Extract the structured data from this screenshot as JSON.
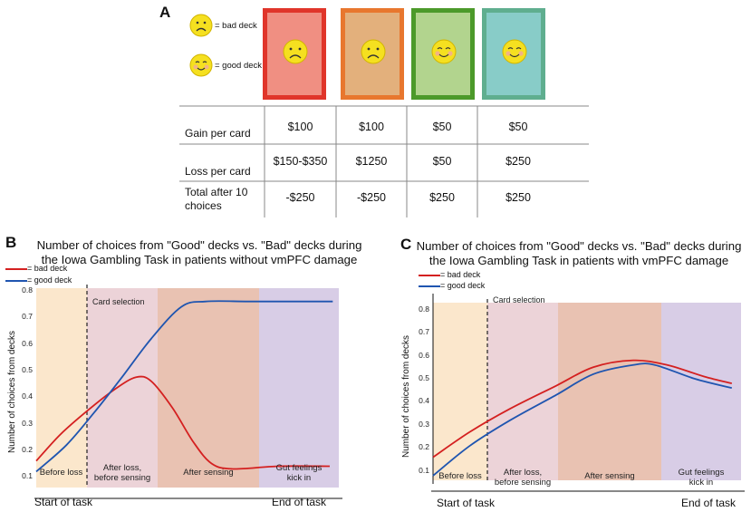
{
  "panel_a": {
    "letter": "A",
    "legend_bad": "= bad deck",
    "legend_good": "= good deck",
    "cards": [
      {
        "name": "deck-1",
        "border": "#e0352a",
        "fill": "#f08f82",
        "face": "sad"
      },
      {
        "name": "deck-2",
        "border": "#e8772e",
        "fill": "#e3b07c",
        "face": "sad"
      },
      {
        "name": "deck-3",
        "border": "#4c9a2a",
        "fill": "#b2d48e",
        "face": "happy"
      },
      {
        "name": "deck-4",
        "border": "#5fae8f",
        "fill": "#88ccc8",
        "face": "happy"
      }
    ],
    "rows": [
      {
        "label": "Gain per card",
        "values": [
          "$100",
          "$100",
          "$50",
          "$50"
        ]
      },
      {
        "label": "Loss per card",
        "values": [
          "$150-$350",
          "$1250",
          "$50",
          "$250"
        ]
      },
      {
        "label_line1": "Total after 10",
        "label_line2": "choices",
        "values": [
          "-$250",
          "-$250",
          "$250",
          "$250"
        ]
      }
    ]
  },
  "panel_b": {
    "letter": "B",
    "title_line1": "Number of choices from \"Good\" decks vs. \"Bad\" decks during",
    "title_line2": "the Iowa Gambling Task in patients without vmPFC damage",
    "legend_bad": "= bad deck",
    "legend_good": "= good deck",
    "ylabel": "Number of choices from decks",
    "ticks": [
      "0.1",
      "0.2",
      "0.3",
      "0.4",
      "0.5",
      "0.6",
      "0.7",
      "0.8"
    ],
    "card_selection": "Card selection",
    "phases": [
      {
        "line1": "Before loss",
        "line2": ""
      },
      {
        "line1": "After loss,",
        "line2": "before sensing"
      },
      {
        "line1": "After sensing",
        "line2": ""
      },
      {
        "line1": "Gut feelings",
        "line2": "kick in"
      }
    ],
    "x_start": "Start of task",
    "x_end": "End of task"
  },
  "panel_c": {
    "letter": "C",
    "title_line1": "Number of choices from \"Good\" decks vs. \"Bad\" decks during",
    "title_line2": "the Iowa Gambling Task in patients with vmPFC damage",
    "legend_bad": "= bad deck",
    "legend_good": "= good deck",
    "ylabel": "Number of choices from decks",
    "ticks": [
      "0.1",
      "0.2",
      "0.3",
      "0.4",
      "0.5",
      "0.6",
      "0.7",
      "0.8"
    ],
    "card_selection": "Card selection",
    "phases": [
      {
        "line1": "Before loss",
        "line2": ""
      },
      {
        "line1": "After loss,",
        "line2": "before sensing"
      },
      {
        "line1": "After sensing",
        "line2": ""
      },
      {
        "line1": "Gut feelings",
        "line2": "kick in"
      }
    ],
    "x_start": "Start of task",
    "x_end": "End of task"
  },
  "colors": {
    "bad": "#d42020",
    "good": "#1f55b0",
    "phase1": "#fbe7cc",
    "phase2": "#ecd3d8",
    "phase3": "#e9c2b2",
    "phase4": "#d8cde6",
    "face": "#f5e020"
  }
}
